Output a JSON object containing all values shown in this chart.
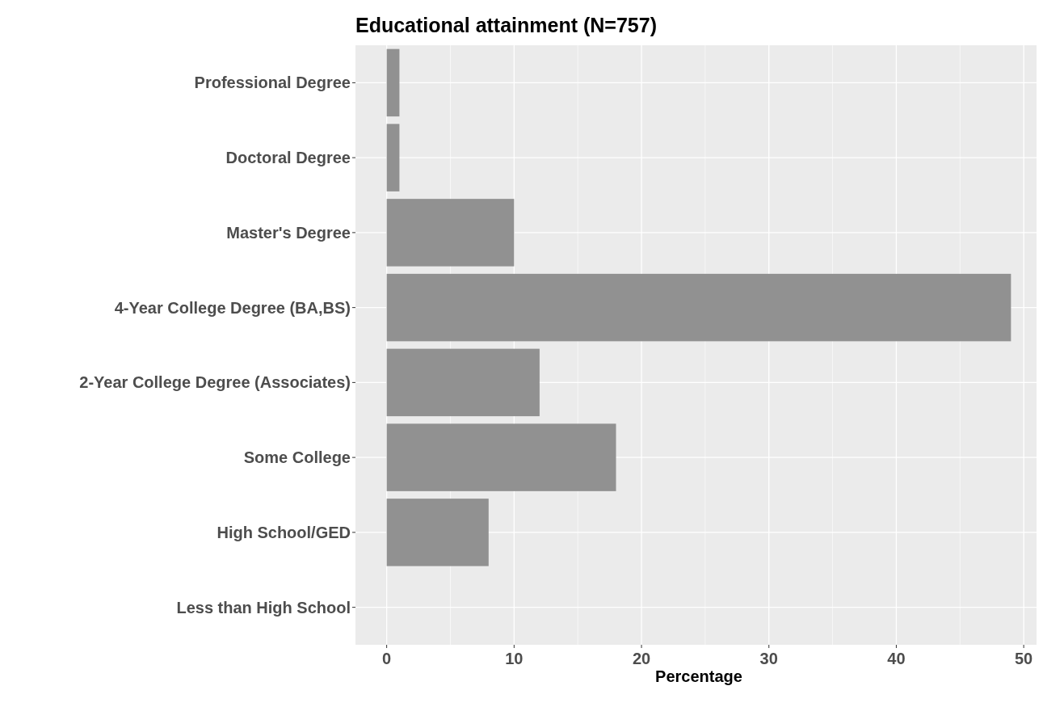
{
  "chart_data": {
    "type": "bar",
    "orientation": "horizontal",
    "title": "Educational attainment (N=757)",
    "xlabel": "Percentage",
    "categories": [
      "Professional Degree",
      "Doctoral Degree",
      "Master's Degree",
      "4-Year College Degree (BA,BS)",
      "2-Year College Degree (Associates)",
      "Some College",
      "High School/GED",
      "Less than High School"
    ],
    "values": [
      1,
      1,
      10,
      49,
      12,
      18,
      8,
      0
    ],
    "color": "#919191",
    "xlim": [
      -2.45,
      51.45
    ],
    "xticks": [
      0,
      10,
      20,
      30,
      40,
      50
    ],
    "grid": true
  }
}
